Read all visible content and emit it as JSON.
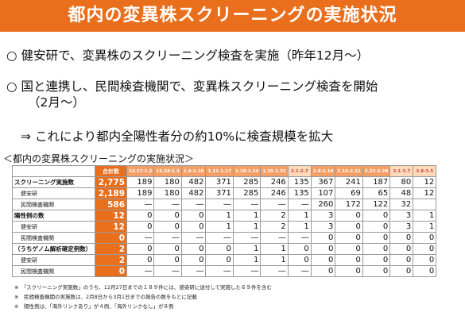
{
  "title": "都内の変異株スクリーニングの実施状況",
  "bullets": [
    {
      "mark": "○",
      "text": "健安研で、変異株のスクリーニング検査を実施（昨年12月～）"
    },
    {
      "mark": "○",
      "text": "国と連携し、民間検査機関で、変異株スクリーニング検査を開始",
      "text2": "（2月～）"
    }
  ],
  "sub_bullet": {
    "mark": "⇒",
    "text": "これにより都内全陽性者分の約10%に検査規模を拡大"
  },
  "table_caption": "＜都内の変異株スクリーニングの実施状況＞",
  "table": {
    "total_header": "合計数",
    "columns": [
      "12.27-1.2",
      "12.28-1.3",
      "1.4-1.10",
      "1.11-1.17",
      "1.18-1.24",
      "1.25-1.31",
      "2.1-2.7",
      "2.8-2.14",
      "2.15-2.21",
      "2.22-2.28",
      "3.1-3.7",
      "3.8-3.5"
    ],
    "rows": [
      {
        "label": "スクリーニング実施数",
        "indent": false,
        "total": "2,775",
        "values": [
          "189",
          "180",
          "482",
          "371",
          "285",
          "246",
          "135",
          "367",
          "241",
          "187",
          "80",
          "12"
        ]
      },
      {
        "label": "健安研",
        "indent": true,
        "total": "2,189",
        "values": [
          "189",
          "180",
          "482",
          "371",
          "285",
          "246",
          "135",
          "107",
          "69",
          "65",
          "48",
          "12"
        ]
      },
      {
        "label": "民間検査機関",
        "indent": true,
        "total": "586",
        "values": [
          "—",
          "—",
          "—",
          "—",
          "—",
          "—",
          "—",
          "260",
          "172",
          "122",
          "32",
          ""
        ]
      },
      {
        "label": "陽性例の数",
        "indent": false,
        "total": "12",
        "values": [
          "0",
          "0",
          "0",
          "1",
          "1",
          "2",
          "1",
          "3",
          "0",
          "0",
          "3",
          "1"
        ]
      },
      {
        "label": "健安研",
        "indent": true,
        "total": "12",
        "values": [
          "0",
          "0",
          "0",
          "1",
          "1",
          "2",
          "1",
          "3",
          "0",
          "0",
          "3",
          "1"
        ]
      },
      {
        "label": "民間検査機関",
        "indent": true,
        "total": "0",
        "values": [
          "—",
          "—",
          "—",
          "—",
          "—",
          "—",
          "—",
          "0",
          "0",
          "0",
          "0",
          "0"
        ]
      },
      {
        "label": "（うちゲノム解析確定例数）",
        "indent": false,
        "total": "2",
        "values": [
          "0",
          "0",
          "0",
          "0",
          "1",
          "1",
          "0",
          "0",
          "0",
          "0",
          "0",
          "0"
        ]
      },
      {
        "label": "健安研",
        "indent": true,
        "total": "2",
        "values": [
          "0",
          "0",
          "0",
          "0",
          "1",
          "1",
          "0",
          "0",
          "0",
          "0",
          "0",
          "0"
        ]
      },
      {
        "label": "民間検査機関",
        "indent": true,
        "total": "0",
        "values": [
          "—",
          "—",
          "—",
          "—",
          "—",
          "—",
          "—",
          "0",
          "0",
          "0",
          "0",
          "0"
        ]
      }
    ]
  },
  "notes": [
    "※　「スクリーニング実施数」のうち、12月27日までの１８９件には、感染研に送付して実施した６９件を含む",
    "※　民間検査機関の実施数は、2月8日から3月1日までの報告の数をもとに記載",
    "※　陽性例は、「海外リンクあり」が４例、「海外リンクなし」が８例"
  ],
  "colors": {
    "accent": "#e96f1c",
    "header": "#f3a068"
  }
}
